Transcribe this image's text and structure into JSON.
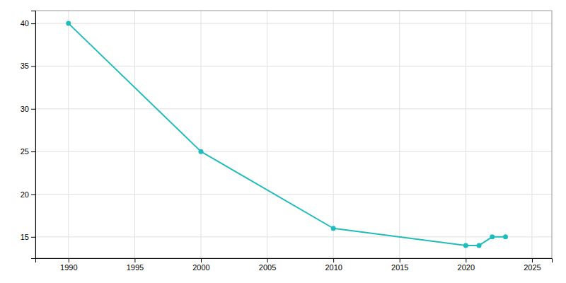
{
  "chart_data": {
    "type": "line",
    "x": [
      1990,
      2000,
      2010,
      2020,
      2021,
      2022,
      2023
    ],
    "values": [
      40,
      25,
      16,
      14,
      14,
      15,
      15
    ],
    "color": "#20BCBC",
    "marker": "circle",
    "xlim": [
      1987.5,
      2026.5
    ],
    "ylim": [
      12.5,
      41.5
    ],
    "xticks": [
      1990,
      1995,
      2000,
      2005,
      2010,
      2015,
      2020,
      2025
    ],
    "yticks": [
      15,
      20,
      25,
      30,
      35,
      40
    ],
    "grid": true
  }
}
